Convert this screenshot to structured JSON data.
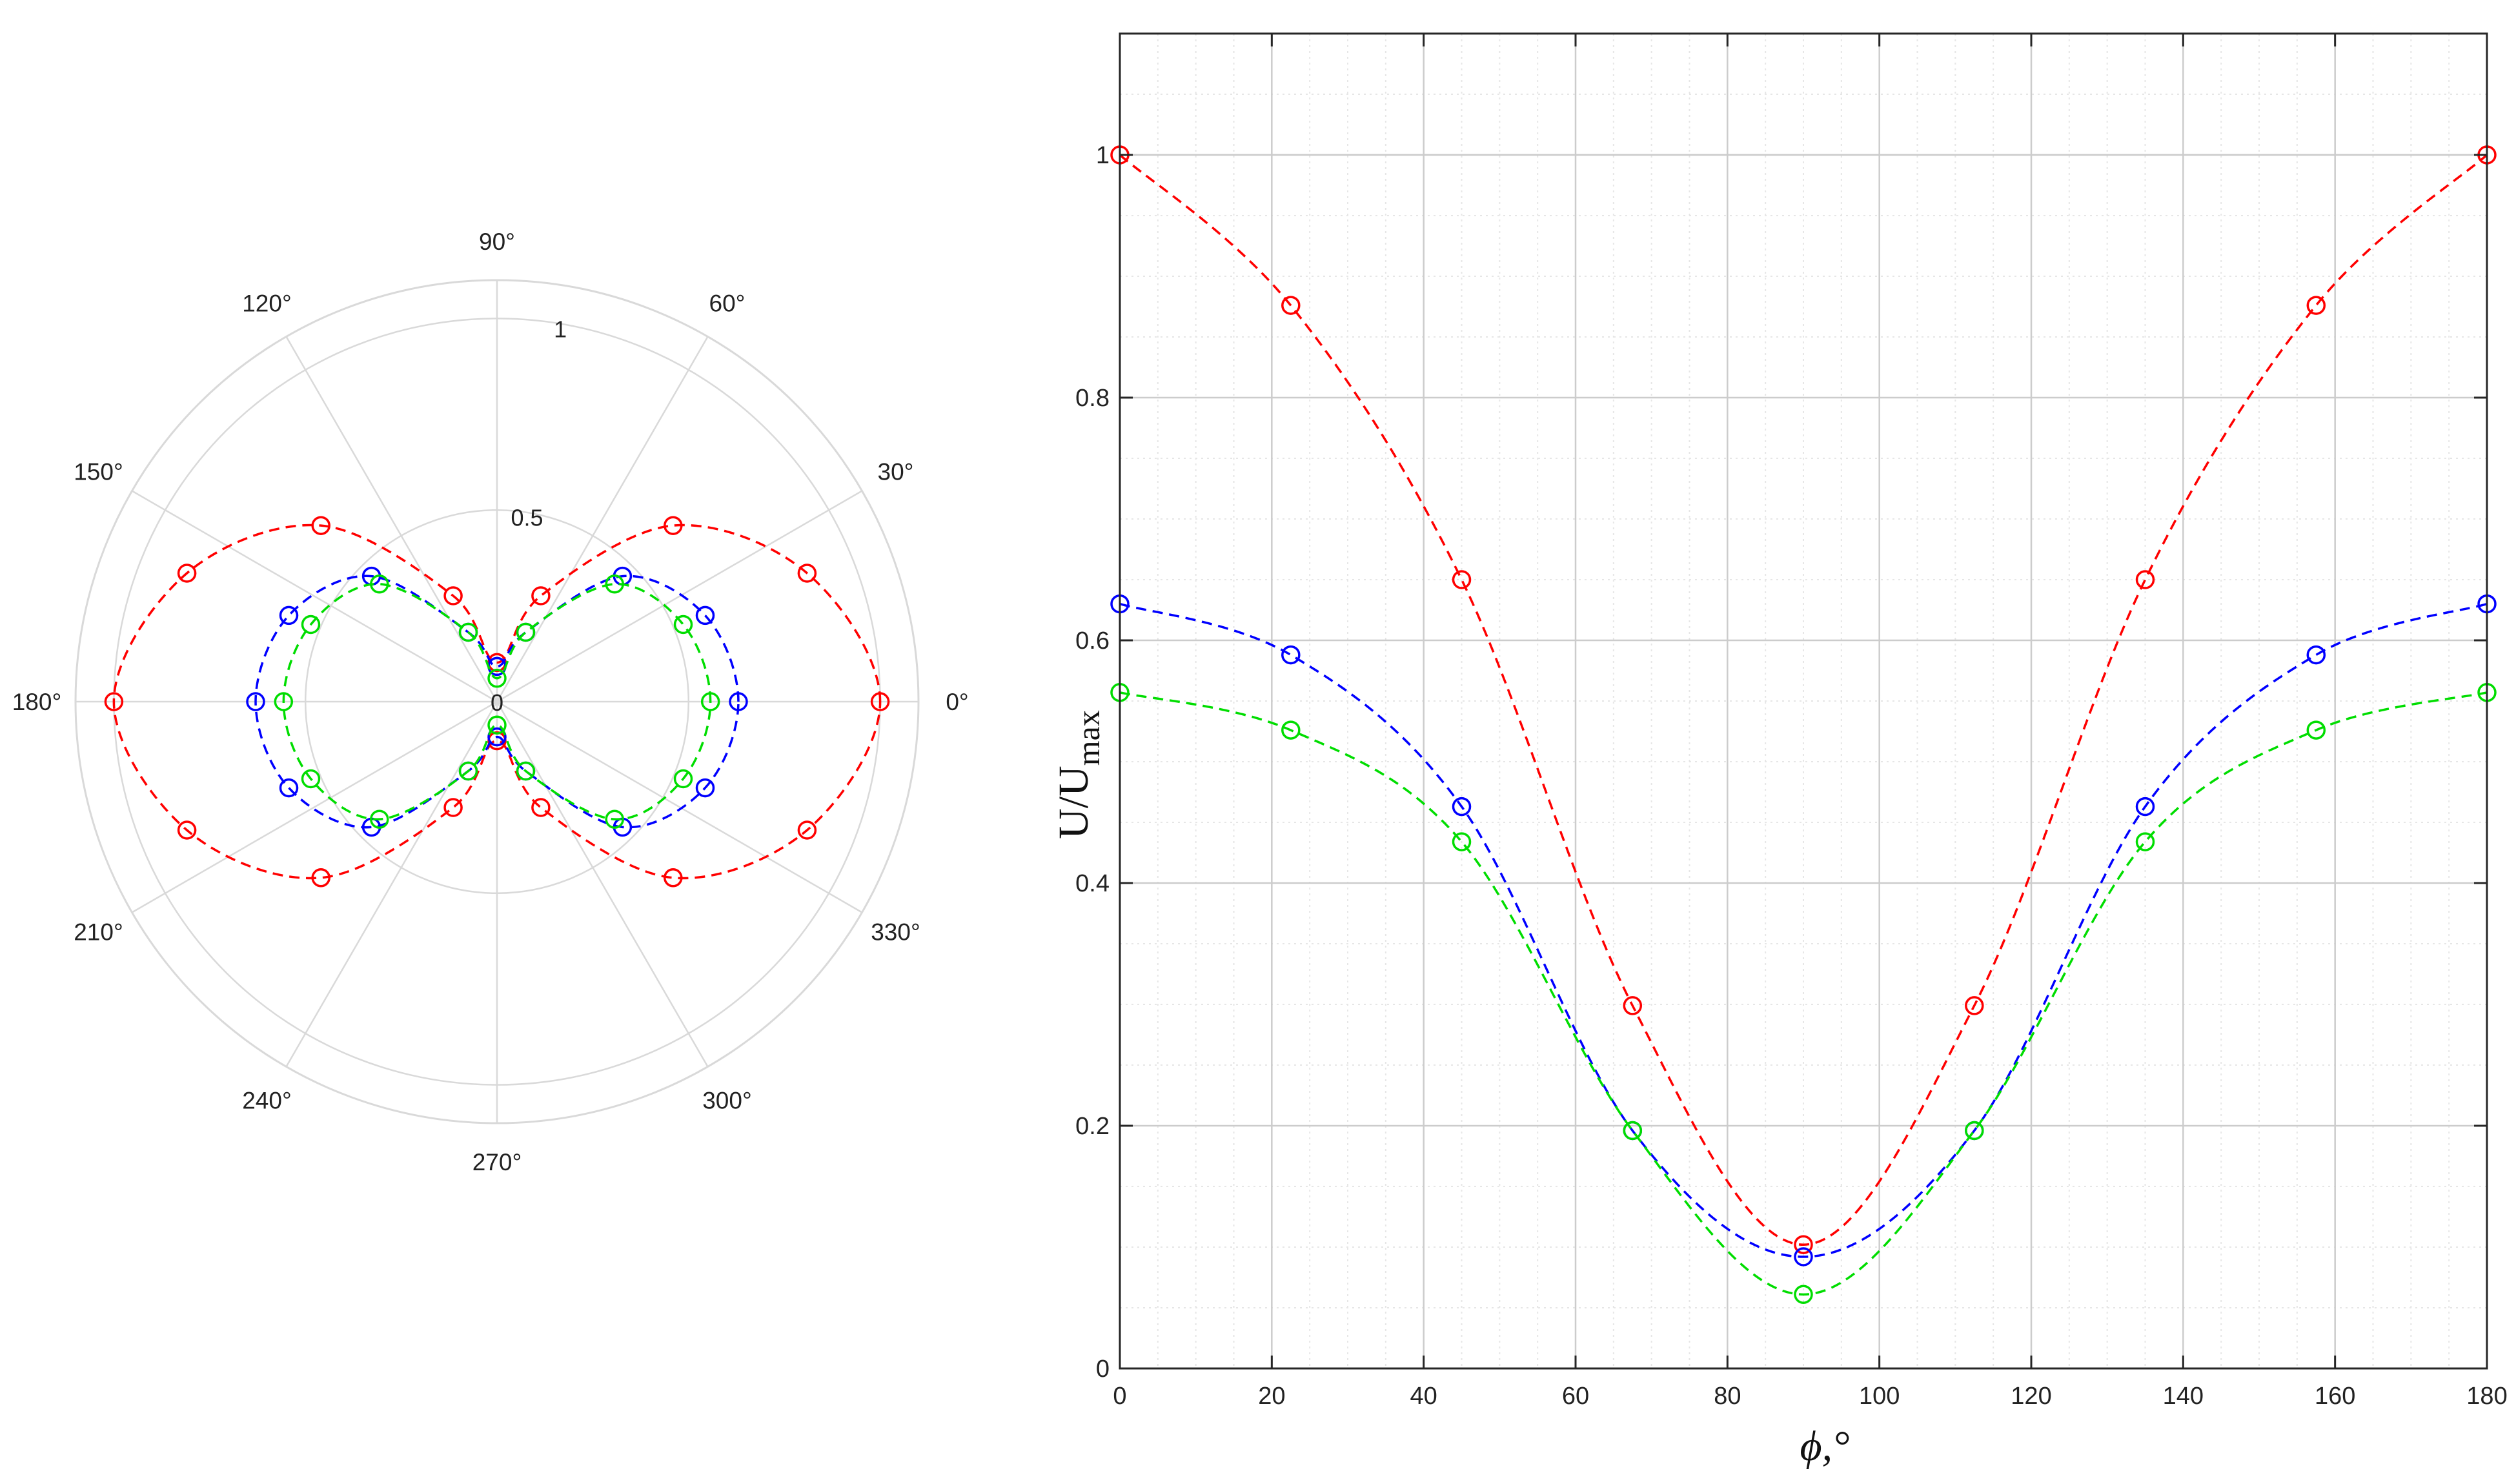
{
  "colors": {
    "series": [
      "#ff0000",
      "#0000ff",
      "#00dd00"
    ],
    "polar_grid": "#d9d9d9",
    "rect_grid_major": "#cccccc",
    "rect_grid_minor": "#e6e6e6",
    "axis": "#262626",
    "text": "#222222"
  },
  "chart_data": [
    {
      "type": "polar",
      "marker": "open-circle",
      "line_style": "dashed",
      "grid": true,
      "r_lim": [
        0,
        1.1
      ],
      "r_ticks": [
        "0",
        "0.5",
        "1"
      ],
      "r_tick_values": [
        0,
        0.5,
        1
      ],
      "theta_ticks": [
        "0°",
        "30°",
        "60°",
        "90°",
        "120°",
        "150°",
        "180°",
        "210°",
        "240°",
        "270°",
        "300°",
        "330°"
      ],
      "theta_tick_values": [
        0,
        30,
        60,
        90,
        120,
        150,
        180,
        210,
        240,
        270,
        300,
        330
      ],
      "theta": [
        0,
        22.5,
        45,
        67.5,
        90,
        112.5,
        135,
        157.5,
        180,
        202.5,
        225,
        247.5,
        270,
        292.5,
        315,
        337.5
      ],
      "series": [
        {
          "values": [
            1.0,
            0.876,
            0.65,
            0.299,
            0.102,
            0.299,
            0.65,
            0.876,
            1.0,
            0.876,
            0.65,
            0.299,
            0.102,
            0.299,
            0.65,
            0.876
          ]
        },
        {
          "values": [
            0.63,
            0.588,
            0.463,
            0.196,
            0.092,
            0.196,
            0.463,
            0.588,
            0.63,
            0.588,
            0.463,
            0.196,
            0.092,
            0.196,
            0.463,
            0.588
          ]
        },
        {
          "values": [
            0.557,
            0.526,
            0.434,
            0.196,
            0.061,
            0.196,
            0.434,
            0.526,
            0.557,
            0.526,
            0.434,
            0.196,
            0.061,
            0.196,
            0.434,
            0.526
          ]
        }
      ]
    },
    {
      "type": "line",
      "marker": "open-circle",
      "line_style": "dashed",
      "grid": true,
      "minor_grid": true,
      "xlabel": "ϕ,°",
      "ylabel": "U/U",
      "ylabel_subscript": "max",
      "xlim": [
        0,
        180
      ],
      "ylim": [
        0,
        1.1
      ],
      "x_ticks": [
        0,
        20,
        40,
        60,
        80,
        100,
        120,
        140,
        160,
        180
      ],
      "x_tick_labels": [
        "0",
        "20",
        "40",
        "60",
        "80",
        "100",
        "120",
        "140",
        "160",
        "180"
      ],
      "y_ticks": [
        0,
        0.2,
        0.4,
        0.6,
        0.8,
        1
      ],
      "y_tick_labels": [
        "0",
        "0.2",
        "0.4",
        "0.6",
        "0.8",
        "1"
      ],
      "x": [
        0,
        22.5,
        45,
        67.5,
        90,
        112.5,
        135,
        157.5,
        180
      ],
      "series": [
        {
          "values": [
            1.0,
            0.876,
            0.65,
            0.299,
            0.102,
            0.299,
            0.65,
            0.876,
            1.0
          ]
        },
        {
          "values": [
            0.63,
            0.588,
            0.463,
            0.196,
            0.092,
            0.196,
            0.463,
            0.588,
            0.63
          ]
        },
        {
          "values": [
            0.557,
            0.526,
            0.434,
            0.196,
            0.061,
            0.196,
            0.434,
            0.526,
            0.557
          ]
        }
      ]
    }
  ]
}
